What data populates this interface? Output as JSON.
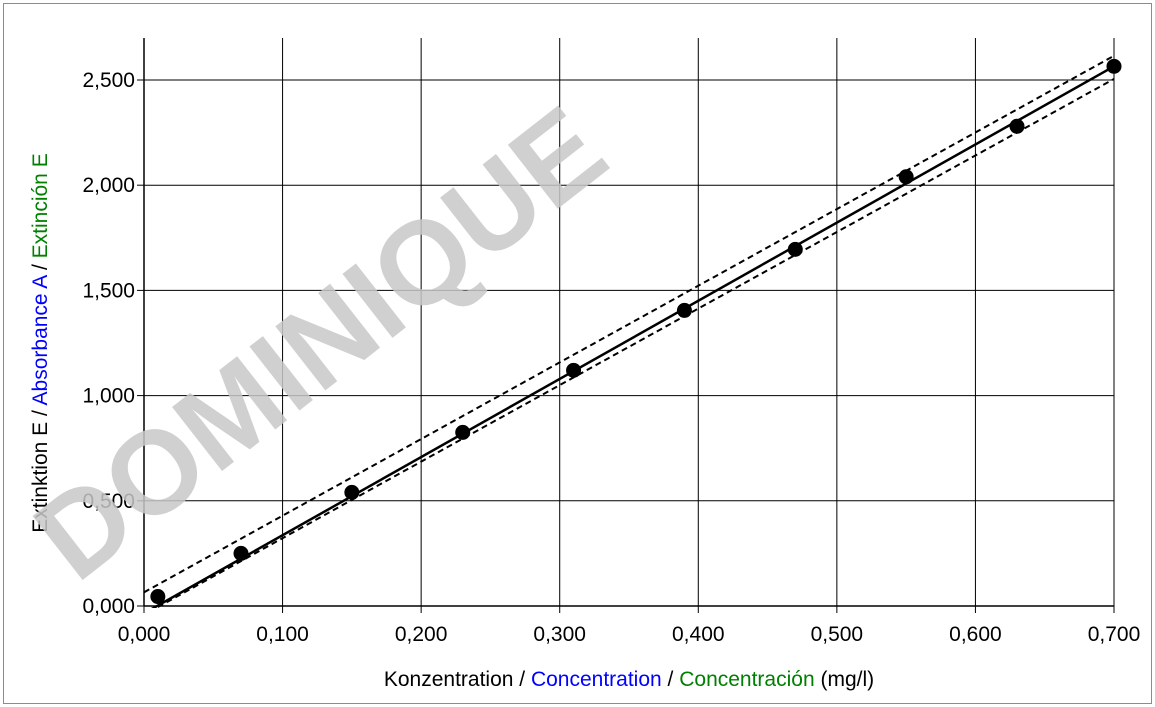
{
  "watermark": "DOMINIQUE",
  "chart_data": {
    "type": "scatter",
    "xlim": [
      0,
      0.7
    ],
    "ylim": [
      0,
      2.5
    ],
    "x_ticks": [
      "0,000",
      "0,100",
      "0,200",
      "0,300",
      "0,400",
      "0,500",
      "0,600",
      "0,700"
    ],
    "y_ticks": [
      "0,000",
      "0,500",
      "1,000",
      "1,500",
      "2,000",
      "2,500"
    ],
    "xlabel": {
      "de": "Konzentration",
      "sep1": " / ",
      "en": "Concentration",
      "sep2": " / ",
      "es": "Concentración",
      "unit": " (mg/l)"
    },
    "ylabel": {
      "de": "Extinktion E",
      "sep1": " / ",
      "en": "Absorbance A",
      "sep2": " / ",
      "es": "Extinción E"
    },
    "label_colors": {
      "de": "#000000",
      "en": "#0000ff",
      "es": "#008000"
    },
    "grid": true,
    "series": [
      {
        "type": "scatter",
        "x": [
          0.01,
          0.07,
          0.15,
          0.23,
          0.31,
          0.39,
          0.47,
          0.55,
          0.63,
          0.7
        ],
        "y": [
          0.045,
          0.25,
          0.54,
          0.825,
          1.12,
          1.405,
          1.695,
          2.04,
          2.28,
          2.565
        ]
      }
    ],
    "fit_line": {
      "x": [
        0.0,
        0.7
      ],
      "y": [
        -0.035,
        2.565
      ]
    },
    "confidence_band": {
      "upper": {
        "x": [
          0.0,
          0.7
        ],
        "y": [
          0.065,
          2.615
        ]
      },
      "lower": {
        "x": [
          0.01,
          0.7
        ],
        "y": [
          -0.005,
          2.505
        ]
      }
    }
  }
}
